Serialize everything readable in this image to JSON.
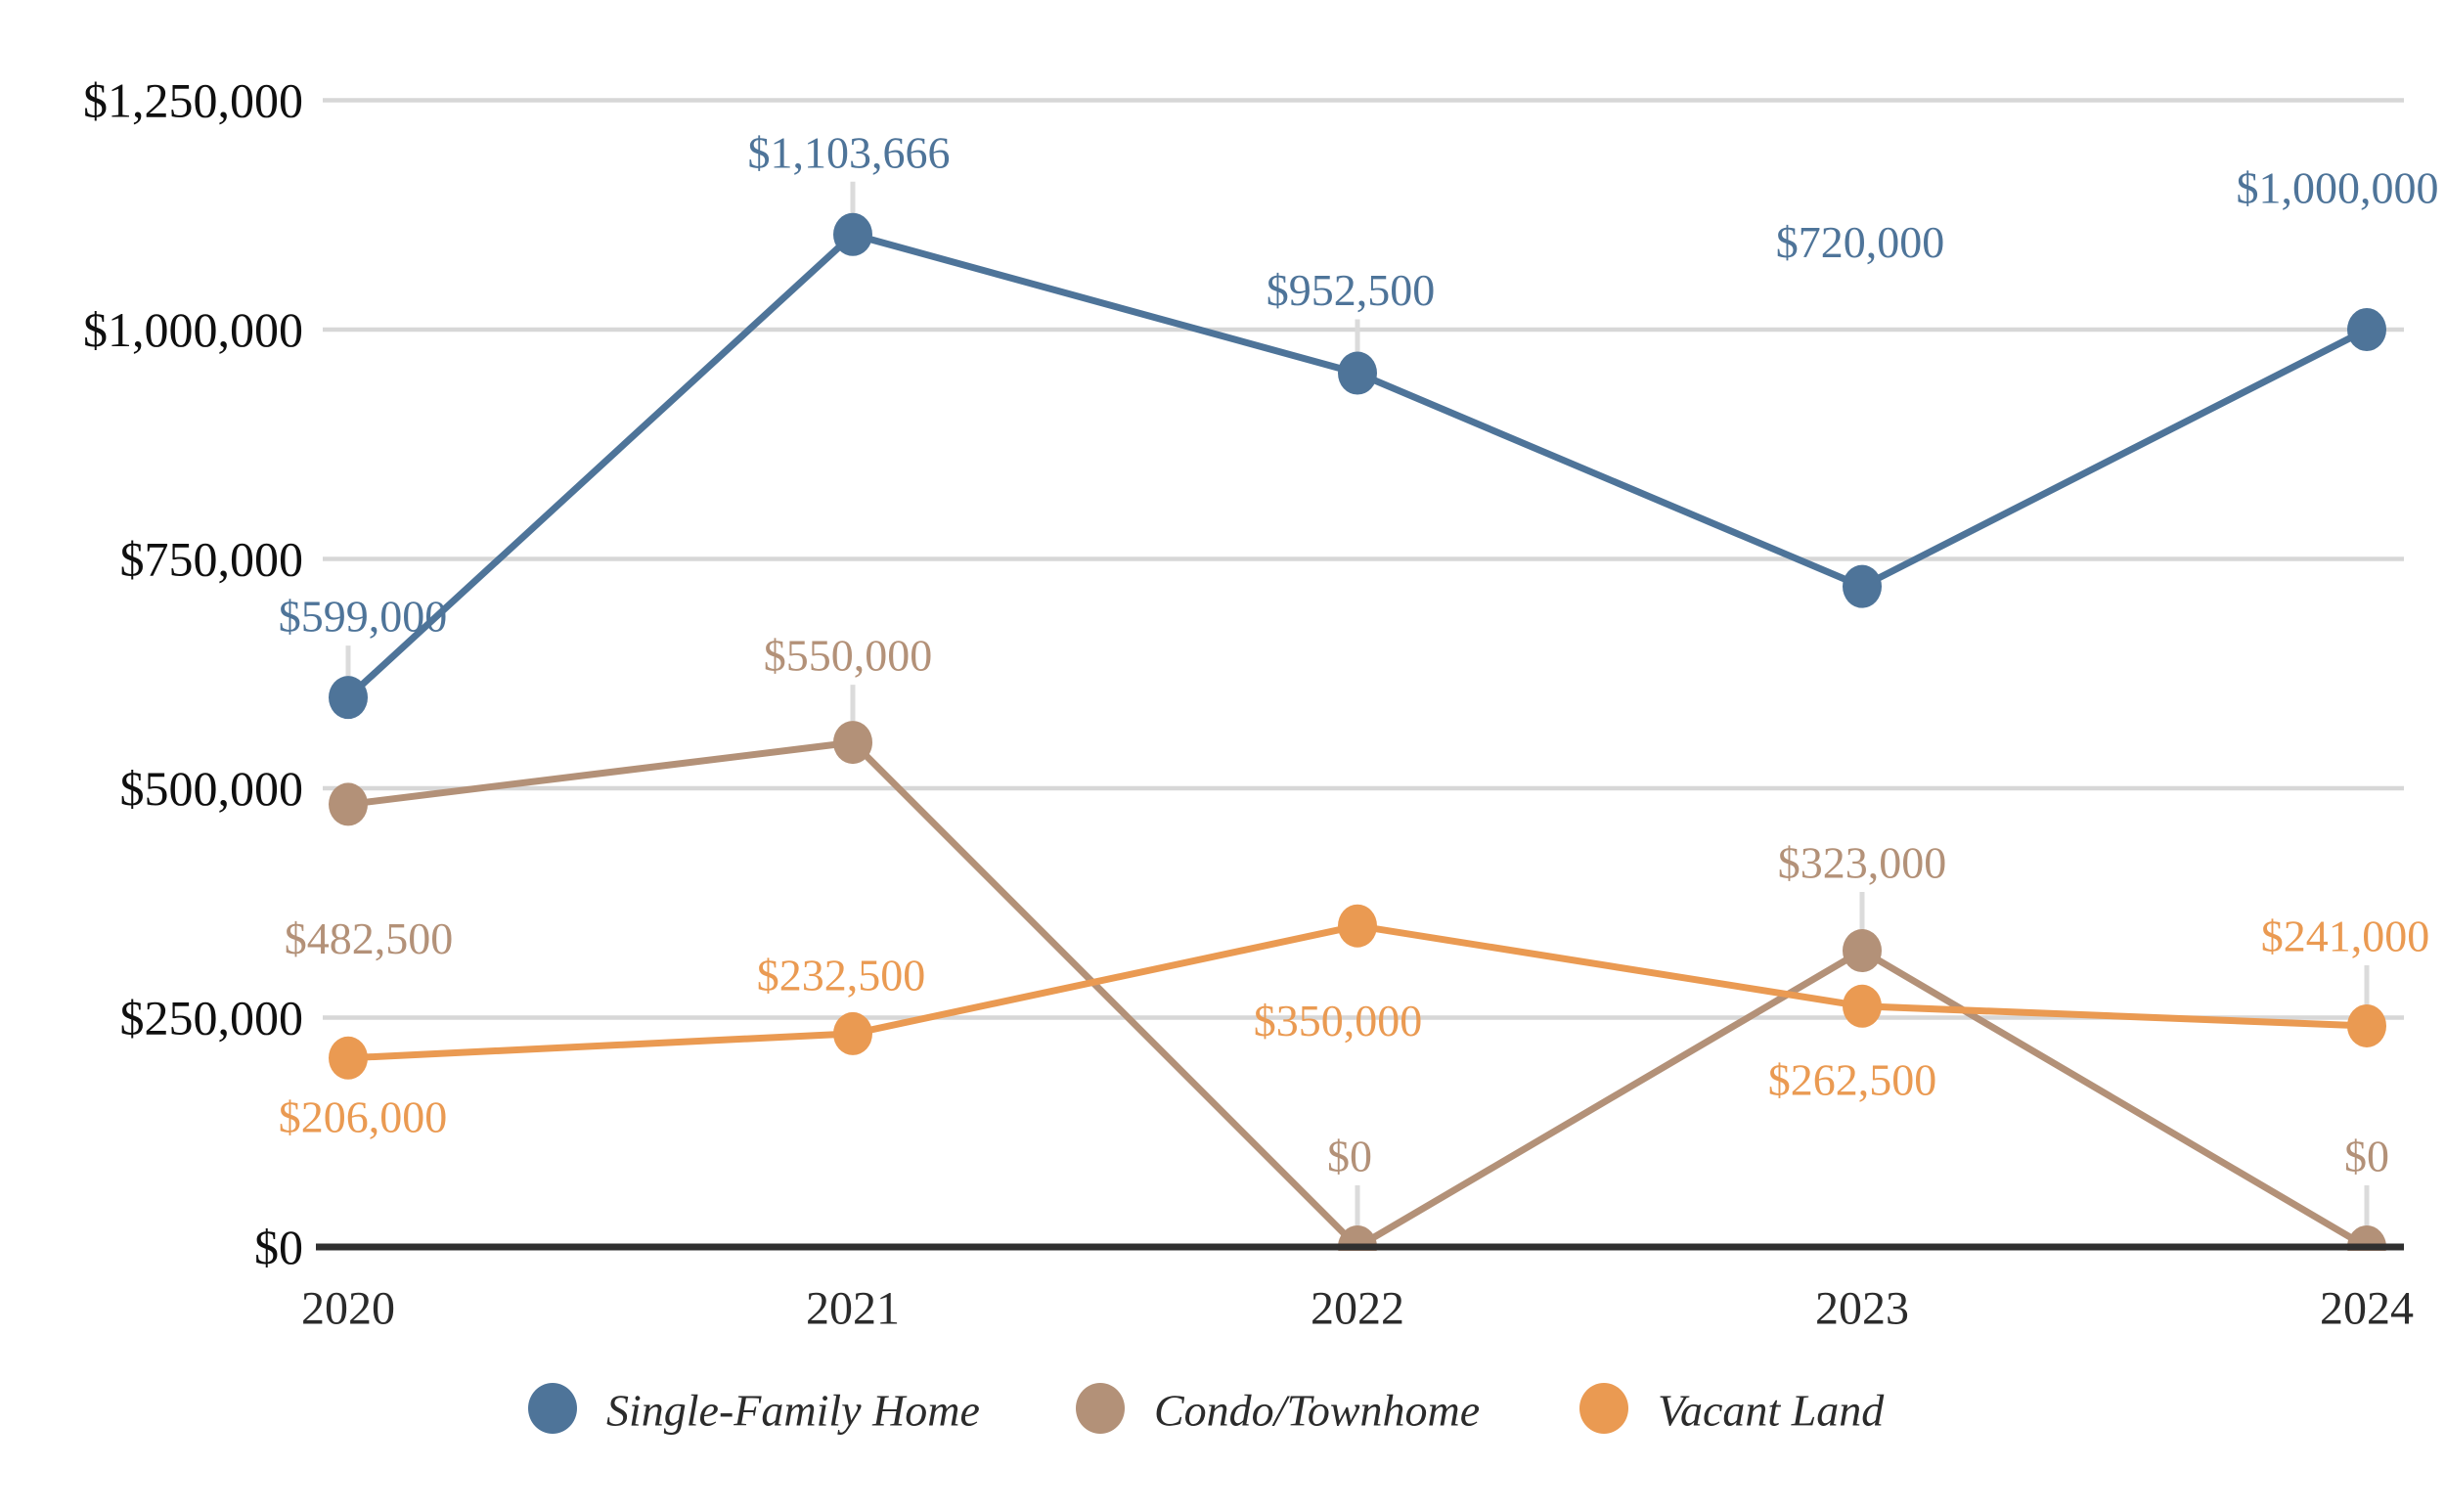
{
  "chart_data": {
    "type": "line",
    "title": "",
    "xlabel": "",
    "ylabel": "",
    "x": [
      "2020",
      "2021",
      "2022",
      "2023",
      "2024"
    ],
    "series": [
      {
        "name": "Single-Family Home",
        "color": "#4E7499",
        "values": [
          599000,
          1103666,
          952500,
          720000,
          1000000
        ],
        "labels": [
          "$599,000",
          "$1,103,666",
          "$952,500",
          "$720,000",
          "$1,000,000"
        ],
        "label_offsets": [
          [
            15,
            -83
          ],
          [
            -4,
            -84
          ],
          [
            -7,
            -85
          ],
          [
            -2,
            -352
          ],
          [
            -30,
            -145
          ]
        ],
        "leaders": [
          true,
          true,
          true,
          false,
          false
        ]
      },
      {
        "name": "Condo/Townhome",
        "color": "#B39178",
        "values": [
          482500,
          550000,
          0,
          323000,
          0
        ],
        "labels": [
          "$482,500",
          "$550,000",
          "$0",
          "$323,000",
          "$0"
        ],
        "label_offsets": [
          [
            21,
            137
          ],
          [
            -5,
            -89
          ],
          [
            -8,
            -93
          ],
          [
            0,
            -90
          ],
          [
            0,
            -93
          ]
        ],
        "leaders": [
          false,
          true,
          true,
          true,
          true
        ]
      },
      {
        "name": "Vacant Land",
        "color": "#EA9A52",
        "values": [
          206000,
          232500,
          350000,
          262500,
          241000
        ],
        "labels": [
          "$206,000",
          "$232,500",
          "$350,000",
          "$262,500",
          "$241,000"
        ],
        "label_offsets": [
          [
            15,
            60
          ],
          [
            -12,
            -60
          ],
          [
            -20,
            97
          ],
          [
            -10,
            75
          ],
          [
            -22,
            -92
          ]
        ],
        "leaders": [
          false,
          false,
          false,
          false,
          true
        ]
      }
    ],
    "y_ticks": [
      "$0",
      "$250,000",
      "$500,000",
      "$750,000",
      "$1,000,000",
      "$1,250,000"
    ],
    "y_tick_values": [
      0,
      250000,
      500000,
      750000,
      1000000,
      1250000
    ],
    "ylim": [
      0,
      1250000
    ],
    "grid": "horizontal",
    "legend_position": "bottom",
    "legend": [
      "Single-Family Home",
      "Condo/Townhome",
      "Vacant Land"
    ],
    "colors": {
      "grid": "#D7D7D7",
      "axis": "#303030",
      "leader": "#DBDBDB",
      "tick_text": "#0f0f0f",
      "year_text": "#2b2b2b",
      "legend_text": "#2b2b2b",
      "background": "#ffffff"
    }
  }
}
